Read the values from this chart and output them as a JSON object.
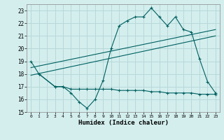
{
  "xlabel": "Humidex (Indice chaleur)",
  "ylabel": "",
  "background_color": "#d4eeee",
  "grid_color": "#b8d8d8",
  "line_color": "#006060",
  "xlim": [
    -0.5,
    23.5
  ],
  "ylim": [
    15,
    23.5
  ],
  "yticks": [
    15,
    16,
    17,
    18,
    19,
    20,
    21,
    22,
    23
  ],
  "xticks": [
    0,
    1,
    2,
    3,
    4,
    5,
    6,
    7,
    8,
    9,
    10,
    11,
    12,
    13,
    14,
    15,
    16,
    17,
    18,
    19,
    20,
    21,
    22,
    23
  ],
  "series1_x": [
    0,
    1,
    3,
    4,
    5,
    6,
    7,
    8,
    9,
    10,
    11,
    12,
    13,
    14,
    15,
    16,
    17,
    18,
    19,
    20,
    21,
    22,
    23
  ],
  "series1_y": [
    19.0,
    18.0,
    17.0,
    17.0,
    16.5,
    15.8,
    15.3,
    16.0,
    17.5,
    20.0,
    21.8,
    22.2,
    22.5,
    22.5,
    23.2,
    22.5,
    21.8,
    22.5,
    21.5,
    21.3,
    19.2,
    17.4,
    16.5
  ],
  "series2_x": [
    0,
    23
  ],
  "series2_y": [
    18.5,
    21.5
  ],
  "series3_x": [
    0,
    23
  ],
  "series3_y": [
    17.9,
    21.0
  ],
  "series4_x": [
    1,
    3,
    4,
    5,
    6,
    7,
    8,
    9,
    10,
    11,
    12,
    13,
    14,
    15,
    16,
    17,
    18,
    19,
    20,
    21,
    22,
    23
  ],
  "series4_y": [
    18.0,
    17.0,
    17.0,
    16.8,
    16.8,
    16.8,
    16.8,
    16.8,
    16.8,
    16.7,
    16.7,
    16.7,
    16.7,
    16.6,
    16.6,
    16.5,
    16.5,
    16.5,
    16.5,
    16.4,
    16.4,
    16.4
  ]
}
